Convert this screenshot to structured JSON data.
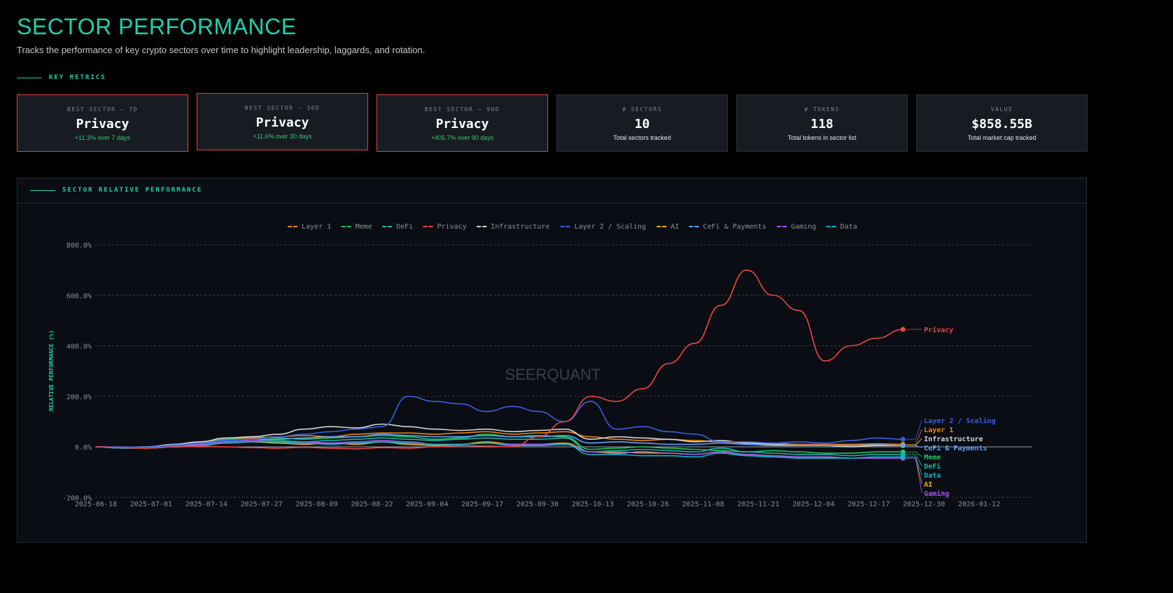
{
  "header": {
    "title": "SECTOR PERFORMANCE",
    "subtitle": "Tracks the performance of key crypto sectors over time to highlight leadership, laggards, and rotation."
  },
  "key_metrics": {
    "label": "KEY METRICS",
    "cards": [
      {
        "label": "BEST SECTOR — 7D",
        "value": "Privacy",
        "sub": "+11.3% over 7 days",
        "highlight": true
      },
      {
        "label": "BEST SECTOR — 30D",
        "value": "Privacy",
        "sub": "+11.6% over 30 days",
        "highlight": true
      },
      {
        "label": "BEST SECTOR — 90D",
        "value": "Privacy",
        "sub": "+405.7% over 90 days",
        "highlight": true
      },
      {
        "label": "# SECTORS",
        "value": "10",
        "sub": "Total sectors tracked",
        "highlight": false
      },
      {
        "label": "# TOKENS",
        "value": "118",
        "sub": "Total tokens in sector list",
        "highlight": false
      },
      {
        "label": "VALUE",
        "value": "$858.55B",
        "sub": "Total market cap tracked",
        "highlight": false
      }
    ]
  },
  "panel": {
    "title": "SECTOR RELATIVE PERFORMANCE",
    "watermark": "SEERQUANT"
  },
  "colors": {
    "accent": "#19d3b0",
    "highlight_border": "#e0463f",
    "positive": "#2ecc71"
  },
  "chart_data": {
    "type": "line",
    "title": "",
    "ylabel": "RELATIVE PERFORMANCE (%)",
    "ylim": [
      -200,
      800
    ],
    "yticks": [
      "-200.0%",
      "0.0%",
      "200.0%",
      "400.0%",
      "600.0%",
      "800.0%"
    ],
    "ytick_values": [
      -200,
      0,
      200,
      400,
      600,
      800
    ],
    "xlim": [
      "2025-06-18",
      "2026-01-12"
    ],
    "xticks": [
      "2025-06-18",
      "2025-07-01",
      "2025-07-14",
      "2025-07-27",
      "2025-08-09",
      "2025-08-22",
      "2025-09-04",
      "2025-09-17",
      "2025-09-30",
      "2025-10-13",
      "2025-10-26",
      "2025-11-08",
      "2025-11-21",
      "2025-12-04",
      "2025-12-17",
      "2025-12-30",
      "2026-01-12"
    ],
    "grid": true,
    "legend": "top",
    "x": [
      "2025-06-18",
      "2025-06-24",
      "2025-06-30",
      "2025-07-06",
      "2025-07-12",
      "2025-07-18",
      "2025-07-24",
      "2025-07-30",
      "2025-08-05",
      "2025-08-11",
      "2025-08-17",
      "2025-08-23",
      "2025-08-29",
      "2025-09-04",
      "2025-09-10",
      "2025-09-16",
      "2025-09-22",
      "2025-09-28",
      "2025-10-04",
      "2025-10-10",
      "2025-10-16",
      "2025-10-22",
      "2025-10-28",
      "2025-11-03",
      "2025-11-09",
      "2025-11-15",
      "2025-11-21",
      "2025-11-27",
      "2025-12-03",
      "2025-12-09",
      "2025-12-15",
      "2025-12-21"
    ],
    "series": [
      {
        "name": "Layer 1",
        "color": "#f5820b",
        "values": [
          0,
          -2,
          0,
          10,
          20,
          30,
          35,
          40,
          45,
          40,
          50,
          55,
          55,
          50,
          55,
          60,
          50,
          55,
          60,
          40,
          30,
          25,
          30,
          25,
          20,
          15,
          15,
          10,
          10,
          10,
          12,
          10
        ]
      },
      {
        "name": "Meme",
        "color": "#22c55e",
        "values": [
          0,
          -5,
          -3,
          5,
          15,
          30,
          40,
          35,
          30,
          35,
          40,
          45,
          40,
          30,
          35,
          50,
          40,
          45,
          40,
          -10,
          -5,
          0,
          -5,
          -10,
          -15,
          -20,
          -15,
          -20,
          -25,
          -25,
          -20,
          -20
        ]
      },
      {
        "name": "DeFi",
        "color": "#14b8a6",
        "values": [
          0,
          -3,
          -2,
          5,
          10,
          25,
          30,
          25,
          20,
          25,
          30,
          35,
          30,
          25,
          30,
          35,
          30,
          30,
          35,
          -20,
          -15,
          -10,
          -15,
          -20,
          -5,
          -20,
          -25,
          -30,
          -30,
          -35,
          -30,
          -30
        ]
      },
      {
        "name": "Privacy",
        "color": "#ef4444",
        "values": [
          0,
          -3,
          -5,
          0,
          2,
          0,
          -3,
          -5,
          -2,
          -5,
          -8,
          -3,
          -5,
          0,
          5,
          3,
          0,
          40,
          100,
          200,
          180,
          230,
          330,
          410,
          560,
          700,
          600,
          540,
          340,
          400,
          430,
          465
        ]
      },
      {
        "name": "Infrastructure",
        "color": "#d4d4d4",
        "values": [
          0,
          -2,
          0,
          10,
          20,
          35,
          40,
          50,
          70,
          80,
          75,
          90,
          80,
          70,
          65,
          70,
          60,
          65,
          70,
          30,
          40,
          35,
          30,
          20,
          25,
          15,
          10,
          5,
          5,
          0,
          5,
          5
        ]
      },
      {
        "name": "Layer 2 / Scaling",
        "color": "#3b5fe0",
        "values": [
          0,
          0,
          -2,
          5,
          15,
          25,
          30,
          40,
          50,
          60,
          70,
          80,
          200,
          180,
          170,
          140,
          160,
          140,
          100,
          180,
          70,
          80,
          60,
          50,
          20,
          20,
          15,
          20,
          15,
          25,
          35,
          30
        ]
      },
      {
        "name": "AI",
        "color": "#eab308",
        "values": [
          0,
          -5,
          -5,
          0,
          5,
          15,
          20,
          15,
          10,
          15,
          10,
          20,
          10,
          5,
          10,
          20,
          10,
          10,
          15,
          -20,
          -25,
          -20,
          -25,
          -30,
          -20,
          -30,
          -35,
          -40,
          -40,
          -45,
          -45,
          -45
        ]
      },
      {
        "name": "CeFi & Payments",
        "color": "#60a5fa",
        "values": [
          0,
          -2,
          0,
          8,
          15,
          25,
          30,
          30,
          35,
          40,
          40,
          50,
          45,
          40,
          40,
          45,
          40,
          40,
          45,
          15,
          20,
          15,
          10,
          10,
          15,
          10,
          5,
          5,
          5,
          5,
          8,
          5
        ]
      },
      {
        "name": "Gaming",
        "color": "#a855f7",
        "values": [
          0,
          -5,
          -5,
          0,
          10,
          20,
          25,
          20,
          20,
          15,
          20,
          25,
          20,
          10,
          10,
          15,
          10,
          10,
          10,
          -20,
          -20,
          -25,
          -25,
          -30,
          -20,
          -30,
          -35,
          -40,
          -40,
          -45,
          -45,
          -45
        ]
      },
      {
        "name": "Data",
        "color": "#06b6d4",
        "values": [
          0,
          -5,
          -3,
          0,
          5,
          15,
          20,
          20,
          15,
          10,
          15,
          20,
          15,
          10,
          10,
          15,
          5,
          5,
          10,
          -30,
          -30,
          -35,
          -35,
          -40,
          -25,
          -35,
          -40,
          -45,
          -45,
          -45,
          -40,
          -40
        ]
      }
    ]
  }
}
